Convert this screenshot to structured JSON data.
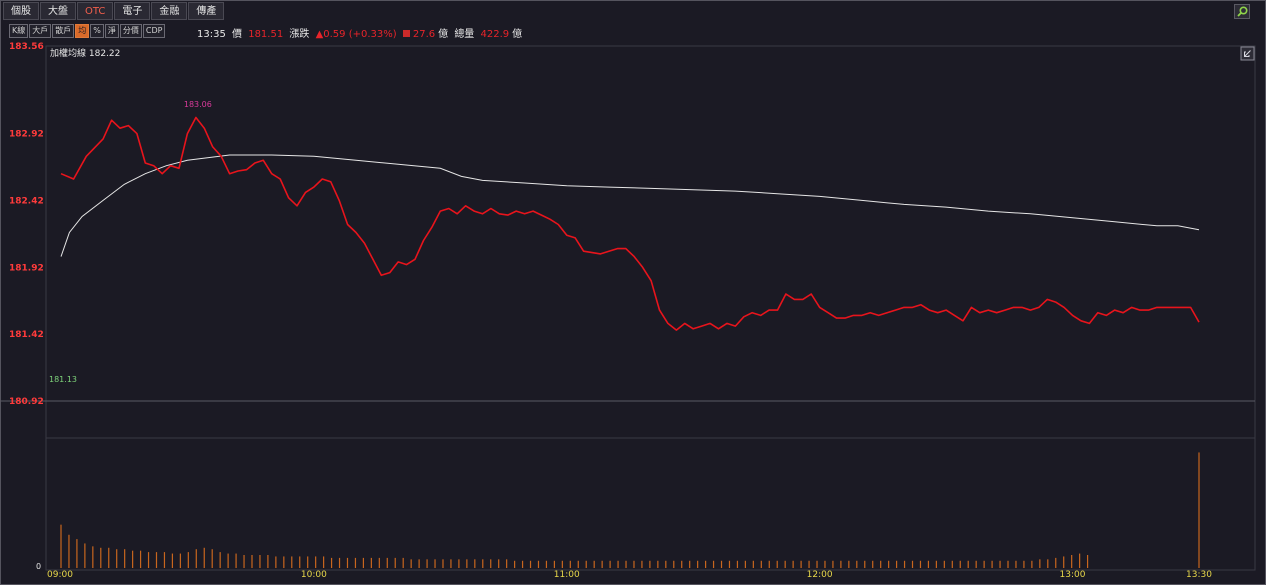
{
  "tabs": [
    {
      "label": "個股"
    },
    {
      "label": "大盤"
    },
    {
      "label": "OTC"
    },
    {
      "label": "電子"
    },
    {
      "label": "金融"
    },
    {
      "label": "傳產"
    }
  ],
  "toolbar": [
    "K線",
    "大戶",
    "散戶",
    "均",
    "%",
    "淨",
    "分價",
    "CDP"
  ],
  "info": {
    "time": "13:35",
    "price_label": "價",
    "price": "181.51",
    "change_label": "漲跌",
    "change": "▲0.59 (+0.33%)",
    "volume": "27.6",
    "volume_unit": "億",
    "total_label": "總量",
    "total": "422.9",
    "total_unit": "億"
  },
  "legend": {
    "label": "加權均線 182.22"
  },
  "colors": {
    "price_line": "#e8141c",
    "avg_line": "#e6e6e6",
    "volume_bar": "#c8661e",
    "grid": "#3a3944"
  },
  "chart_data": {
    "type": "line",
    "ylim": [
      180.92,
      183.56
    ],
    "yticks": [
      "183.56",
      "182.92",
      "182.42",
      "181.92",
      "181.42",
      "180.92"
    ],
    "xticks": [
      "09:00",
      "10:00",
      "11:00",
      "12:00",
      "13:00",
      "13:30"
    ],
    "x_range_minutes": [
      0,
      270
    ],
    "high_label": "183.06",
    "low_label": "181.13",
    "volume_zero_label": "0",
    "series": [
      {
        "name": "加權均線",
        "x": [
          0,
          2,
          5,
          10,
          15,
          20,
          25,
          30,
          35,
          40,
          50,
          60,
          70,
          80,
          90,
          95,
          100,
          110,
          120,
          130,
          140,
          150,
          160,
          170,
          180,
          190,
          200,
          210,
          220,
          230,
          240,
          250,
          260,
          265,
          270
        ],
        "values": [
          182.0,
          182.18,
          182.3,
          182.42,
          182.54,
          182.62,
          182.68,
          182.72,
          182.74,
          182.76,
          182.76,
          182.75,
          182.72,
          182.69,
          182.66,
          182.6,
          182.57,
          182.55,
          182.53,
          182.52,
          182.51,
          182.5,
          182.49,
          182.47,
          182.45,
          182.42,
          182.39,
          182.37,
          182.34,
          182.32,
          182.29,
          182.26,
          182.23,
          182.23,
          182.2
        ]
      },
      {
        "name": "成交價",
        "x": [
          0,
          3,
          6,
          10,
          12,
          14,
          16,
          18,
          20,
          22,
          24,
          26,
          28,
          30,
          32,
          34,
          36,
          38,
          40,
          42,
          44,
          46,
          48,
          50,
          52,
          54,
          56,
          58,
          60,
          62,
          64,
          66,
          68,
          70,
          72,
          74,
          76,
          78,
          80,
          82,
          84,
          86,
          88,
          90,
          92,
          94,
          96,
          98,
          100,
          102,
          104,
          106,
          108,
          110,
          112,
          114,
          116,
          118,
          120,
          122,
          124,
          126,
          128,
          130,
          132,
          134,
          136,
          138,
          140,
          142,
          144,
          146,
          148,
          150,
          152,
          154,
          156,
          158,
          160,
          162,
          164,
          166,
          168,
          170,
          172,
          174,
          176,
          178,
          180,
          182,
          184,
          186,
          188,
          190,
          192,
          194,
          196,
          198,
          200,
          202,
          204,
          206,
          208,
          210,
          212,
          214,
          216,
          218,
          220,
          222,
          224,
          226,
          228,
          230,
          232,
          234,
          236,
          238,
          240,
          242,
          244,
          246,
          248,
          250,
          252,
          254,
          256,
          258,
          260,
          262,
          264,
          266,
          268,
          270
        ],
        "values": [
          182.62,
          182.58,
          182.75,
          182.88,
          183.02,
          182.96,
          182.98,
          182.92,
          182.7,
          182.68,
          182.62,
          182.68,
          182.66,
          182.92,
          183.04,
          182.96,
          182.82,
          182.75,
          182.62,
          182.64,
          182.65,
          182.7,
          182.72,
          182.62,
          182.58,
          182.44,
          182.38,
          182.48,
          182.52,
          182.58,
          182.56,
          182.42,
          182.24,
          182.18,
          182.1,
          181.98,
          181.86,
          181.88,
          181.96,
          181.94,
          181.98,
          182.12,
          182.22,
          182.34,
          182.36,
          182.32,
          182.38,
          182.34,
          182.32,
          182.36,
          182.32,
          182.31,
          182.34,
          182.32,
          182.34,
          182.31,
          182.28,
          182.24,
          182.16,
          182.14,
          182.04,
          182.03,
          182.02,
          182.04,
          182.06,
          182.06,
          182.0,
          181.92,
          181.82,
          181.6,
          181.5,
          181.45,
          181.5,
          181.46,
          181.48,
          181.5,
          181.46,
          181.5,
          181.48,
          181.55,
          181.58,
          181.56,
          181.6,
          181.6,
          181.72,
          181.68,
          181.68,
          181.72,
          181.62,
          181.58,
          181.54,
          181.54,
          181.56,
          181.56,
          181.58,
          181.56,
          181.58,
          181.6,
          181.62,
          181.62,
          181.64,
          181.6,
          181.58,
          181.6,
          181.56,
          181.52,
          181.62,
          181.58,
          181.6,
          181.58,
          181.6,
          181.62,
          181.62,
          181.6,
          181.62,
          181.68,
          181.66,
          181.62,
          181.56,
          181.52,
          181.5,
          181.58,
          181.56,
          181.6,
          181.58,
          181.62,
          181.6,
          181.6,
          181.62,
          181.62,
          181.62,
          181.62,
          181.62,
          181.51
        ]
      }
    ],
    "volume": [
      3.0,
      2.3,
      2.0,
      1.7,
      1.5,
      1.4,
      1.4,
      1.3,
      1.3,
      1.2,
      1.2,
      1.1,
      1.1,
      1.1,
      1.0,
      1.0,
      1.1,
      1.3,
      1.4,
      1.3,
      1.1,
      1.0,
      1.0,
      0.9,
      0.9,
      0.9,
      0.9,
      0.8,
      0.8,
      0.8,
      0.8,
      0.8,
      0.8,
      0.8,
      0.7,
      0.7,
      0.7,
      0.7,
      0.7,
      0.7,
      0.7,
      0.7,
      0.7,
      0.7,
      0.6,
      0.6,
      0.6,
      0.6,
      0.6,
      0.6,
      0.6,
      0.6,
      0.6,
      0.6,
      0.6,
      0.6,
      0.6,
      0.5,
      0.5,
      0.5,
      0.5,
      0.5,
      0.5,
      0.5,
      0.5,
      0.5,
      0.5,
      0.5,
      0.5,
      0.5,
      0.5,
      0.5,
      0.5,
      0.5,
      0.5,
      0.5,
      0.5,
      0.5,
      0.5,
      0.5,
      0.5,
      0.5,
      0.5,
      0.5,
      0.5,
      0.5,
      0.5,
      0.5,
      0.5,
      0.5,
      0.5,
      0.5,
      0.5,
      0.5,
      0.5,
      0.5,
      0.5,
      0.5,
      0.5,
      0.5,
      0.5,
      0.5,
      0.5,
      0.5,
      0.5,
      0.5,
      0.5,
      0.5,
      0.5,
      0.5,
      0.5,
      0.5,
      0.5,
      0.5,
      0.5,
      0.5,
      0.5,
      0.5,
      0.5,
      0.5,
      0.5,
      0.5,
      0.5,
      0.6,
      0.6,
      0.7,
      0.8,
      0.9,
      1.0,
      0.9,
      0.0,
      0.0,
      0.0,
      0.0,
      0.0,
      0.0,
      0.0,
      0.0,
      0.0,
      0.0,
      0.0,
      0.0,
      0.0,
      8.0
    ],
    "volume_ymax": 9.0
  }
}
